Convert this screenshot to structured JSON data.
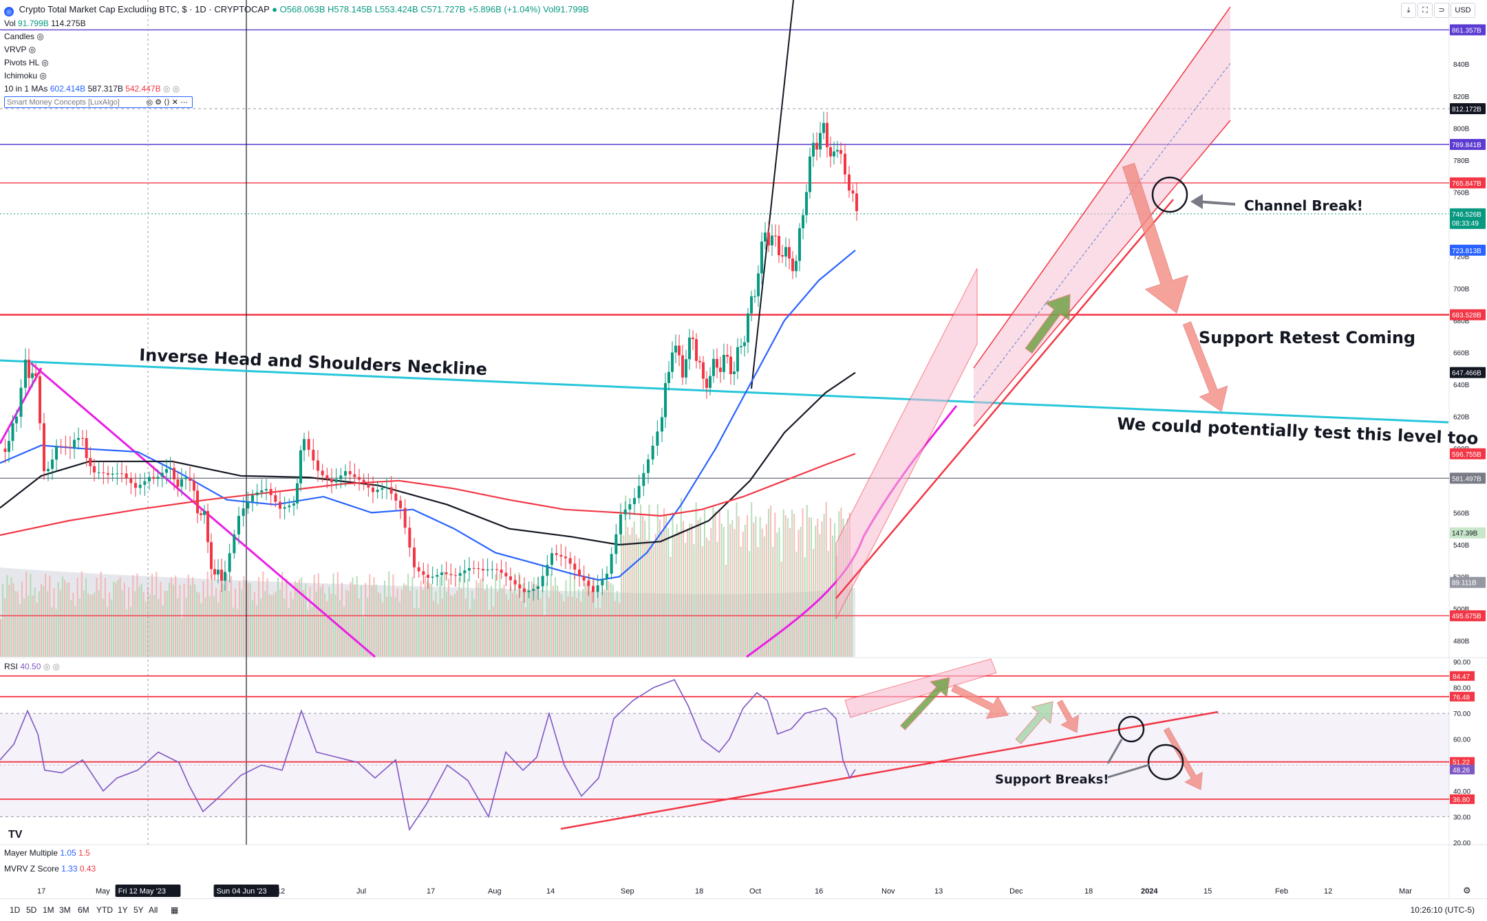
{
  "header": {
    "symbol_title": "Crypto Total Market Cap Excluding BTC, $ · 1D · CRYPTOCAP",
    "ohlc": {
      "o": "O568.063B",
      "h": "H578.145B",
      "l": "L553.424B",
      "c": "C571.727B",
      "chg": "+5.896B (+1.04%)",
      "vol": "Vol91.799B"
    }
  },
  "indicators": {
    "vol": {
      "label": "Vol",
      "v1": "91.799B",
      "v2": "114.275B"
    },
    "hidden": [
      "Candles",
      "VRVP",
      "Pivots HL",
      "Ichimoku"
    ],
    "mas": {
      "label": "10 in 1 MAs",
      "v1": "602.414B",
      "v2": "587.317B",
      "v3": "542.447B"
    },
    "smc": "Smart Money Concepts [LuxAlgo]",
    "rsi": {
      "label": "RSI",
      "value": "40.50"
    },
    "mayer": {
      "label": "Mayer Multiple",
      "v1": "1.05",
      "v2": "1.5"
    },
    "mvrv": {
      "label": "MVRV Z Score",
      "v1": "1.33",
      "v2": "0.43"
    }
  },
  "toolbar": {
    "currency": "USD"
  },
  "annotations": {
    "neckline": "Inverse Head and Shoulders Neckline",
    "channel_break": "Channel Break!",
    "support_retest": "Support Retest Coming",
    "test_level": "We could potentially test this level too",
    "support_breaks": "Support Breaks!"
  },
  "bottom": {
    "timeframes": [
      "1D",
      "5D",
      "1M",
      "3M",
      "6M",
      "YTD",
      "1Y",
      "5Y",
      "All"
    ],
    "clock": "10:26:10 (UTC-5)"
  },
  "colors": {
    "up": "#089981",
    "down": "#f23645",
    "ma_blue": "#2962ff",
    "neckline": "#26c6da",
    "pink": "#e91ee6",
    "channel": "#f23645",
    "purple": "#5b3bd1"
  },
  "chart_data": [
    {
      "type": "candlestick",
      "title": "Crypto Total Market Cap Excluding BTC",
      "x_ticks": [
        "17",
        "May",
        "Fri 12 May '23",
        "Sun 04 Jun '23",
        "12",
        "Jul",
        "17",
        "Aug",
        "14",
        "Sep",
        "18",
        "Oct",
        "16",
        "Nov",
        "13",
        "Dec",
        "18",
        "2024",
        "15",
        "Feb",
        "12",
        "Mar"
      ],
      "ylim": [
        470,
        880
      ],
      "y_ticks": [
        480,
        500,
        520,
        540,
        560,
        580,
        600,
        620,
        640,
        660,
        680,
        700,
        720,
        740,
        760,
        780,
        800,
        820,
        840,
        860
      ],
      "y_tick_suffix": "B",
      "close_series_approx": [
        {
          "t": 0,
          "v": 600
        },
        {
          "t": 22,
          "v": 615
        },
        {
          "t": 35,
          "v": 655
        },
        {
          "t": 50,
          "v": 640
        },
        {
          "t": 62,
          "v": 590
        },
        {
          "t": 80,
          "v": 600
        },
        {
          "t": 100,
          "v": 595
        },
        {
          "t": 118,
          "v": 610
        },
        {
          "t": 135,
          "v": 580
        },
        {
          "t": 155,
          "v": 578
        },
        {
          "t": 175,
          "v": 582
        },
        {
          "t": 195,
          "v": 578
        },
        {
          "t": 215,
          "v": 588
        },
        {
          "t": 240,
          "v": 583
        },
        {
          "t": 262,
          "v": 582
        },
        {
          "t": 280,
          "v": 570
        },
        {
          "t": 295,
          "v": 555
        },
        {
          "t": 310,
          "v": 518
        },
        {
          "t": 325,
          "v": 525
        },
        {
          "t": 345,
          "v": 555
        },
        {
          "t": 365,
          "v": 565
        },
        {
          "t": 385,
          "v": 570
        },
        {
          "t": 405,
          "v": 562
        },
        {
          "t": 425,
          "v": 570
        },
        {
          "t": 440,
          "v": 605
        },
        {
          "t": 460,
          "v": 590
        },
        {
          "t": 480,
          "v": 585
        },
        {
          "t": 500,
          "v": 590
        },
        {
          "t": 520,
          "v": 580
        },
        {
          "t": 540,
          "v": 568
        },
        {
          "t": 560,
          "v": 570
        },
        {
          "t": 580,
          "v": 560
        },
        {
          "t": 600,
          "v": 528
        },
        {
          "t": 620,
          "v": 525
        },
        {
          "t": 640,
          "v": 528
        },
        {
          "t": 660,
          "v": 522
        },
        {
          "t": 680,
          "v": 522
        },
        {
          "t": 700,
          "v": 518
        },
        {
          "t": 720,
          "v": 520
        },
        {
          "t": 740,
          "v": 518
        },
        {
          "t": 760,
          "v": 515
        },
        {
          "t": 780,
          "v": 520
        },
        {
          "t": 800,
          "v": 538
        },
        {
          "t": 820,
          "v": 530
        },
        {
          "t": 840,
          "v": 515
        },
        {
          "t": 860,
          "v": 505
        },
        {
          "t": 880,
          "v": 520
        },
        {
          "t": 900,
          "v": 562
        },
        {
          "t": 920,
          "v": 575
        },
        {
          "t": 940,
          "v": 598
        },
        {
          "t": 960,
          "v": 620
        },
        {
          "t": 975,
          "v": 665
        },
        {
          "t": 990,
          "v": 650
        },
        {
          "t": 1005,
          "v": 670
        },
        {
          "t": 1020,
          "v": 640
        },
        {
          "t": 1035,
          "v": 650
        },
        {
          "t": 1050,
          "v": 655
        },
        {
          "t": 1065,
          "v": 650
        },
        {
          "t": 1080,
          "v": 672
        },
        {
          "t": 1095,
          "v": 700
        },
        {
          "t": 1110,
          "v": 735
        },
        {
          "t": 1125,
          "v": 728
        },
        {
          "t": 1140,
          "v": 720
        },
        {
          "t": 1155,
          "v": 715
        },
        {
          "t": 1165,
          "v": 750
        },
        {
          "t": 1180,
          "v": 790
        },
        {
          "t": 1195,
          "v": 798
        },
        {
          "t": 1210,
          "v": 780
        },
        {
          "t": 1220,
          "v": 790
        },
        {
          "t": 1232,
          "v": 760
        },
        {
          "t": 1243,
          "v": 746.5
        }
      ],
      "moving_averages": [
        {
          "name": "MA blue",
          "color": "#2962ff",
          "points": [
            [
              0,
              591
            ],
            [
              60,
              602
            ],
            [
              120,
              600
            ],
            [
              200,
              598
            ],
            [
              260,
              585
            ],
            [
              330,
              568
            ],
            [
              400,
              565
            ],
            [
              470,
              570
            ],
            [
              540,
              560
            ],
            [
              600,
              562
            ],
            [
              660,
              550
            ],
            [
              720,
              535
            ],
            [
              780,
              528
            ],
            [
              830,
              522
            ],
            [
              870,
              518
            ],
            [
              900,
              520
            ],
            [
              940,
              535
            ],
            [
              990,
              565
            ],
            [
              1040,
              600
            ],
            [
              1090,
              640
            ],
            [
              1140,
              680
            ],
            [
              1190,
              705
            ],
            [
              1243,
              723.8
            ]
          ]
        },
        {
          "name": "MA black",
          "color": "#131722",
          "points": [
            [
              0,
              563
            ],
            [
              60,
              583
            ],
            [
              130,
              592
            ],
            [
              250,
              592
            ],
            [
              350,
              583
            ],
            [
              450,
              582
            ],
            [
              550,
              577
            ],
            [
              650,
              565
            ],
            [
              740,
              550
            ],
            [
              830,
              545
            ],
            [
              900,
              540
            ],
            [
              960,
              542
            ],
            [
              1030,
              555
            ],
            [
              1090,
              580
            ],
            [
              1140,
              610
            ],
            [
              1200,
              635
            ],
            [
              1243,
              647.5
            ]
          ]
        },
        {
          "name": "MA red",
          "color": "#f23645",
          "points": [
            [
              0,
              546
            ],
            [
              100,
              555
            ],
            [
              200,
              562
            ],
            [
              300,
              568
            ],
            [
              400,
              573
            ],
            [
              500,
              578
            ],
            [
              580,
              580
            ],
            [
              660,
              575
            ],
            [
              740,
              568
            ],
            [
              820,
              562
            ],
            [
              900,
              560
            ],
            [
              960,
              558
            ],
            [
              1020,
              562
            ],
            [
              1080,
              570
            ],
            [
              1140,
              580
            ],
            [
              1200,
              590
            ],
            [
              1243,
              596.8
            ]
          ]
        }
      ],
      "horizontal_levels": [
        {
          "value": 861.357,
          "label": "861.357B",
          "color": "#5b3bd1"
        },
        {
          "value": 789.841,
          "label": "789.841B",
          "color": "#5b3bd1"
        },
        {
          "value": 765.847,
          "label": "765.847B",
          "color": "#f23645"
        },
        {
          "value": 683.528,
          "label": "683.528B",
          "color": "#f23645"
        },
        {
          "value": 581.497,
          "label": "581.497B",
          "color": "#787b86"
        },
        {
          "value": 495.675,
          "label": "495.675B",
          "color": "#f23645"
        }
      ],
      "price_tags": [
        {
          "value": 812.172,
          "label": "812.172B",
          "bg": "#131722"
        },
        {
          "value": 746.526,
          "label": "746.526B",
          "sub": "08:33:49",
          "bg": "#089981"
        },
        {
          "value": 723.813,
          "label": "723.813B",
          "bg": "#2962ff"
        },
        {
          "value": 647.466,
          "label": "647.466B",
          "bg": "#131722"
        },
        {
          "value": 596.755,
          "label": "596.755B",
          "bg": "#f23645"
        },
        {
          "value": 547.39,
          "label": "147.39B",
          "bg": "#c8e6c9",
          "fg": "#131722"
        },
        {
          "value": 516.5,
          "label": "89.111B",
          "bg": "#9598a1"
        }
      ]
    },
    {
      "type": "line",
      "title": "RSI",
      "ylim": [
        20,
        90
      ],
      "y_ticks": [
        20,
        30,
        40,
        50,
        60,
        70,
        80,
        90
      ],
      "levels": [
        {
          "value": 84.47,
          "label": "84.47"
        },
        {
          "value": 76.48,
          "label": "76.48"
        },
        {
          "value": 51.22,
          "label": "51.22"
        },
        {
          "value": 36.8,
          "label": "36.80"
        }
      ],
      "current": {
        "value": 48.26,
        "label": "48.26"
      },
      "series_points": [
        [
          0,
          52
        ],
        [
          20,
          58
        ],
        [
          40,
          71
        ],
        [
          55,
          62
        ],
        [
          65,
          48
        ],
        [
          90,
          47
        ],
        [
          120,
          52
        ],
        [
          150,
          40
        ],
        [
          170,
          45
        ],
        [
          200,
          48
        ],
        [
          230,
          55
        ],
        [
          260,
          51
        ],
        [
          275,
          42
        ],
        [
          295,
          32
        ],
        [
          320,
          38
        ],
        [
          350,
          46
        ],
        [
          380,
          50
        ],
        [
          410,
          48
        ],
        [
          438,
          71
        ],
        [
          460,
          55
        ],
        [
          490,
          53
        ],
        [
          520,
          51
        ],
        [
          545,
          45
        ],
        [
          575,
          52
        ],
        [
          595,
          25
        ],
        [
          620,
          35
        ],
        [
          650,
          50
        ],
        [
          680,
          44
        ],
        [
          710,
          30
        ],
        [
          735,
          55
        ],
        [
          760,
          48
        ],
        [
          780,
          53
        ],
        [
          798,
          70
        ],
        [
          820,
          50
        ],
        [
          845,
          38
        ],
        [
          870,
          45
        ],
        [
          892,
          68
        ],
        [
          920,
          75
        ],
        [
          950,
          80
        ],
        [
          980,
          83
        ],
        [
          1000,
          73
        ],
        [
          1020,
          60
        ],
        [
          1045,
          55
        ],
        [
          1060,
          60
        ],
        [
          1080,
          72
        ],
        [
          1100,
          78
        ],
        [
          1115,
          75
        ],
        [
          1130,
          62
        ],
        [
          1150,
          64
        ],
        [
          1170,
          70
        ],
        [
          1185,
          71
        ],
        [
          1200,
          72
        ],
        [
          1215,
          68
        ],
        [
          1225,
          52
        ],
        [
          1235,
          45
        ],
        [
          1243,
          48.3
        ]
      ]
    }
  ]
}
